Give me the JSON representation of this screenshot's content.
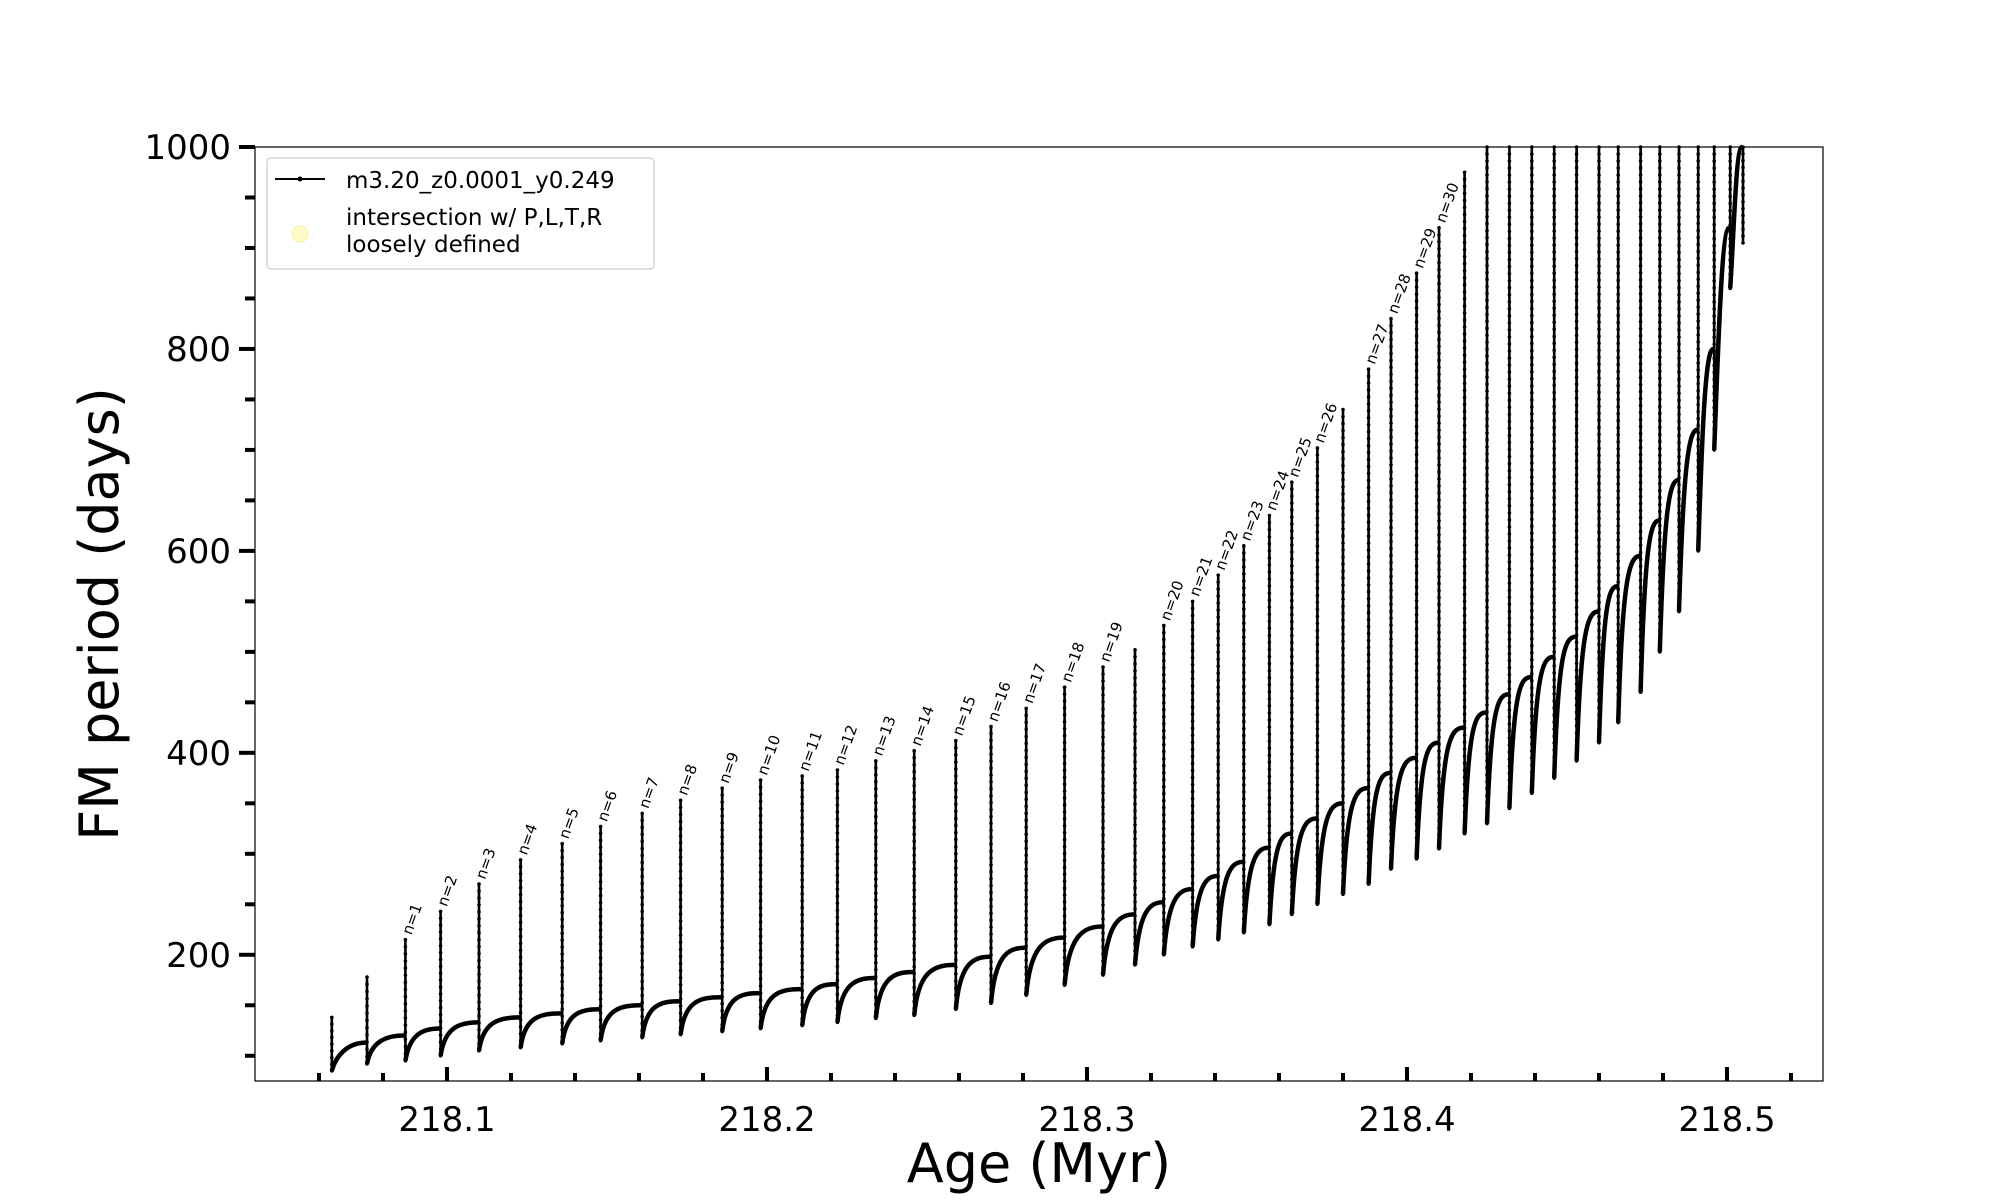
{
  "chart_data": {
    "type": "line",
    "title": "",
    "xlabel": "Age (Myr)",
    "ylabel": "FM period (days)",
    "xlim": [
      218.04,
      218.53
    ],
    "ylim": [
      75,
      1000
    ],
    "x_ticks": [
      218.1,
      218.2,
      218.3,
      218.4,
      218.5
    ],
    "x_tick_labels": [
      "218.1",
      "218.2",
      "218.3",
      "218.4",
      "218.5"
    ],
    "x_minor_step": 0.02,
    "y_ticks": [
      200,
      400,
      600,
      800,
      1000
    ],
    "y_tick_labels": [
      "200",
      "400",
      "600",
      "800",
      "1000"
    ],
    "y_minor_step": 50,
    "grid": false,
    "legend": {
      "position": "top-left",
      "entries": [
        {
          "label": "m3.20_z0.0001_y0.249",
          "marker": "line-with-dots",
          "color": "#000000"
        },
        {
          "label_lines": [
            "intersection w/ P,L,T,R",
            "loosely defined"
          ],
          "marker": "circle",
          "color": "#fffac8"
        }
      ]
    },
    "series": [
      {
        "name": "m3.20_z0.0001_y0.249",
        "color": "#000000",
        "spikes": [
          {
            "x": 218.064,
            "peak": 138,
            "dip": 85,
            "base": 100,
            "label": ""
          },
          {
            "x": 218.075,
            "peak": 178,
            "dip": 92,
            "base": 113,
            "label": ""
          },
          {
            "x": 218.087,
            "peak": 215,
            "dip": 95,
            "base": 120,
            "label": "n=1"
          },
          {
            "x": 218.098,
            "peak": 243,
            "dip": 100,
            "base": 127,
            "label": "n=2"
          },
          {
            "x": 218.11,
            "peak": 270,
            "dip": 105,
            "base": 133,
            "label": "n=3"
          },
          {
            "x": 218.123,
            "peak": 294,
            "dip": 108,
            "base": 138,
            "label": "n=4"
          },
          {
            "x": 218.136,
            "peak": 310,
            "dip": 112,
            "base": 142,
            "label": "n=5"
          },
          {
            "x": 218.148,
            "peak": 327,
            "dip": 115,
            "base": 146,
            "label": "n=6"
          },
          {
            "x": 218.161,
            "peak": 340,
            "dip": 118,
            "base": 150,
            "label": "n=7"
          },
          {
            "x": 218.173,
            "peak": 353,
            "dip": 121,
            "base": 154,
            "label": "n=8"
          },
          {
            "x": 218.186,
            "peak": 365,
            "dip": 124,
            "base": 158,
            "label": "n=9"
          },
          {
            "x": 218.198,
            "peak": 373,
            "dip": 127,
            "base": 162,
            "label": "n=10"
          },
          {
            "x": 218.211,
            "peak": 377,
            "dip": 130,
            "base": 166,
            "label": "n=11"
          },
          {
            "x": 218.222,
            "peak": 383,
            "dip": 133,
            "base": 171,
            "label": "n=12"
          },
          {
            "x": 218.234,
            "peak": 392,
            "dip": 137,
            "base": 177,
            "label": "n=13"
          },
          {
            "x": 218.246,
            "peak": 402,
            "dip": 140,
            "base": 183,
            "label": "n=14"
          },
          {
            "x": 218.259,
            "peak": 412,
            "dip": 146,
            "base": 190,
            "label": "n=15"
          },
          {
            "x": 218.27,
            "peak": 426,
            "dip": 152,
            "base": 198,
            "label": "n=16"
          },
          {
            "x": 218.281,
            "peak": 444,
            "dip": 160,
            "base": 207,
            "label": "n=17"
          },
          {
            "x": 218.293,
            "peak": 465,
            "dip": 170,
            "base": 217,
            "label": "n=18"
          },
          {
            "x": 218.305,
            "peak": 485,
            "dip": 180,
            "base": 228,
            "label": "n=19"
          },
          {
            "x": 218.315,
            "peak": 502,
            "dip": 190,
            "base": 240,
            "label": ""
          },
          {
            "x": 218.324,
            "peak": 526,
            "dip": 200,
            "base": 252,
            "label": "n=20"
          },
          {
            "x": 218.333,
            "peak": 550,
            "dip": 208,
            "base": 265,
            "label": "n=21"
          },
          {
            "x": 218.341,
            "peak": 576,
            "dip": 215,
            "base": 278,
            "label": "n=22"
          },
          {
            "x": 218.349,
            "peak": 605,
            "dip": 222,
            "base": 292,
            "label": "n=23"
          },
          {
            "x": 218.357,
            "peak": 635,
            "dip": 230,
            "base": 306,
            "label": "n=24"
          },
          {
            "x": 218.364,
            "peak": 668,
            "dip": 240,
            "base": 320,
            "label": "n=25"
          },
          {
            "x": 218.372,
            "peak": 702,
            "dip": 250,
            "base": 335,
            "label": "n=26"
          },
          {
            "x": 218.38,
            "peak": 740,
            "dip": 260,
            "base": 350,
            "label": ""
          },
          {
            "x": 218.388,
            "peak": 780,
            "dip": 270,
            "base": 365,
            "label": "n=27"
          },
          {
            "x": 218.395,
            "peak": 830,
            "dip": 285,
            "base": 380,
            "label": "n=28"
          },
          {
            "x": 218.403,
            "peak": 875,
            "dip": 295,
            "base": 395,
            "label": "n=29"
          },
          {
            "x": 218.41,
            "peak": 920,
            "dip": 305,
            "base": 410,
            "label": "n=30"
          },
          {
            "x": 218.418,
            "peak": 975,
            "dip": 320,
            "base": 425,
            "label": ""
          },
          {
            "x": 218.425,
            "peak": 1000,
            "dip": 330,
            "base": 440,
            "label": ""
          },
          {
            "x": 218.432,
            "peak": 1000,
            "dip": 345,
            "base": 458,
            "label": ""
          },
          {
            "x": 218.439,
            "peak": 1000,
            "dip": 360,
            "base": 475,
            "label": ""
          },
          {
            "x": 218.446,
            "peak": 1000,
            "dip": 375,
            "base": 495,
            "label": ""
          },
          {
            "x": 218.453,
            "peak": 1000,
            "dip": 392,
            "base": 515,
            "label": ""
          },
          {
            "x": 218.46,
            "peak": 1000,
            "dip": 410,
            "base": 540,
            "label": ""
          },
          {
            "x": 218.466,
            "peak": 1000,
            "dip": 430,
            "base": 565,
            "label": ""
          },
          {
            "x": 218.473,
            "peak": 1000,
            "dip": 460,
            "base": 595,
            "label": ""
          },
          {
            "x": 218.479,
            "peak": 1000,
            "dip": 500,
            "base": 630,
            "label": ""
          },
          {
            "x": 218.485,
            "peak": 1000,
            "dip": 540,
            "base": 670,
            "label": ""
          },
          {
            "x": 218.491,
            "peak": 1000,
            "dip": 600,
            "base": 720,
            "label": ""
          },
          {
            "x": 218.496,
            "peak": 1000,
            "dip": 700,
            "base": 800,
            "label": ""
          },
          {
            "x": 218.501,
            "peak": 1000,
            "dip": 860,
            "base": 920,
            "label": ""
          },
          {
            "x": 218.505,
            "peak": 1000,
            "dip": 905,
            "base": 1000,
            "label": ""
          }
        ]
      }
    ]
  }
}
